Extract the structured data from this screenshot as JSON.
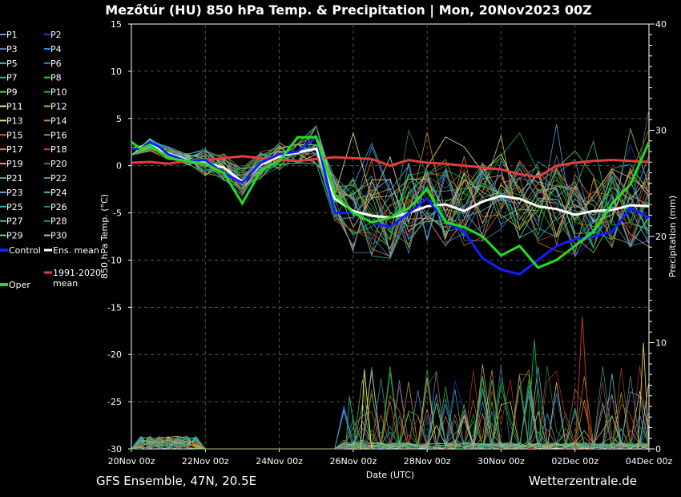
{
  "chart_data": {
    "type": "line",
    "title": "Mezőtúr  (HU)  850 hPa Temp. & Precipitation | Mon, 20Nov2023 00Z",
    "xlabel": "Date (UTC)",
    "ylabel": "850 hPa Temp. (°C)",
    "y2label": "Precipitation (mm)",
    "xlim": [
      0,
      14
    ],
    "ylim": [
      -30,
      15
    ],
    "y2lim": [
      0,
      40
    ],
    "x_tick_labels": [
      "20Nov 00z",
      "22Nov 00z",
      "24Nov 00z",
      "26Nov 00z",
      "28Nov 00z",
      "30Nov 00z",
      "02Dec 00z",
      "04Dec 00z"
    ],
    "x_tick_days": [
      0,
      2,
      4,
      6,
      8,
      10,
      12,
      14
    ],
    "y_ticks": [
      15,
      10,
      5,
      0,
      -5,
      -10,
      -15,
      -20,
      -25,
      -30
    ],
    "y2_ticks": [
      40,
      30,
      20,
      10,
      0
    ],
    "grid": true,
    "legend": {
      "members": [
        {
          "label": "P1",
          "color": "#6495ed"
        },
        {
          "label": "P2",
          "color": "#1e3cd2"
        },
        {
          "label": "P3",
          "color": "#4682b4"
        },
        {
          "label": "P4",
          "color": "#1e90ff"
        },
        {
          "label": "P5",
          "color": "#40c0c0"
        },
        {
          "label": "P6",
          "color": "#2e9f6a"
        },
        {
          "label": "P7",
          "color": "#3cb371"
        },
        {
          "label": "P8",
          "color": "#32cd32"
        },
        {
          "label": "P9",
          "color": "#66cc66"
        },
        {
          "label": "P10",
          "color": "#22bb22"
        },
        {
          "label": "P11",
          "color": "#f0e68c"
        },
        {
          "label": "P12",
          "color": "#daa520"
        },
        {
          "label": "P13",
          "color": "#eedd82"
        },
        {
          "label": "P14",
          "color": "#cd853f"
        },
        {
          "label": "P15",
          "color": "#d2691e"
        },
        {
          "label": "P16",
          "color": "#b8860b"
        },
        {
          "label": "P17",
          "color": "#e07050"
        },
        {
          "label": "P18",
          "color": "#c0392b"
        },
        {
          "label": "P19",
          "color": "#e9967a"
        },
        {
          "label": "P20",
          "color": "#a0522d"
        },
        {
          "label": "P21",
          "color": "#5f9ea0"
        },
        {
          "label": "P22",
          "color": "#3399cc"
        },
        {
          "label": "P23",
          "color": "#66aadd"
        },
        {
          "label": "P24",
          "color": "#48b0c8"
        },
        {
          "label": "P25",
          "color": "#20b2aa"
        },
        {
          "label": "P26",
          "color": "#2e8b57"
        },
        {
          "label": "P27",
          "color": "#50c878"
        },
        {
          "label": "P28",
          "color": "#00b050"
        },
        {
          "label": "P29",
          "color": "#7ccd7c"
        },
        {
          "label": "P30",
          "color": "#cdbe70"
        }
      ],
      "control": {
        "label": "Control",
        "color": "#1020ff"
      },
      "ens_mean": {
        "label": "Ens. mean",
        "color": "#ffffff"
      },
      "oper": {
        "label": "Oper",
        "color": "#1ee01e"
      },
      "climate": {
        "label_line1": "1991-2020",
        "label_line2": "mean",
        "color": "#e83c3c"
      }
    },
    "series": [
      {
        "name": "Oper",
        "color": "#1ee01e",
        "x": [
          0,
          0.25,
          0.5,
          0.75,
          1,
          1.5,
          2,
          2.5,
          3,
          3.5,
          4,
          4.5,
          5,
          5.5,
          6,
          6.5,
          7,
          7.5,
          8,
          8.5,
          9,
          9.5,
          10,
          10.5,
          11,
          11.5,
          12,
          12.5,
          13,
          13.5,
          14
        ],
        "values": [
          2.5,
          1.8,
          2.2,
          1.5,
          0.8,
          0.5,
          0.2,
          -0.8,
          -4,
          -0.5,
          0.5,
          3,
          3,
          -3,
          -5,
          -6,
          -5.5,
          -4.5,
          -2.5,
          -6,
          -6.5,
          -7.5,
          -9.5,
          -8.5,
          -10.8,
          -10,
          -8.5,
          -7,
          -4,
          -2,
          2.5
        ]
      },
      {
        "name": "Control",
        "color": "#1020ff",
        "x": [
          0,
          0.25,
          0.5,
          0.75,
          1,
          1.5,
          2,
          2.5,
          3,
          3.5,
          4,
          4.5,
          5,
          5.5,
          6,
          6.5,
          7,
          7.5,
          8,
          8.5,
          9,
          9.5,
          10,
          10.5,
          11,
          11.5,
          12,
          12.5,
          13,
          13.5,
          14
        ],
        "values": [
          1.8,
          1.8,
          2.5,
          2,
          1.2,
          0.5,
          0.6,
          -0.8,
          -1.8,
          0.3,
          1.2,
          1.5,
          3,
          -5,
          -5,
          -6,
          -6.5,
          -5,
          -3.5,
          -6,
          -7,
          -9.8,
          -11,
          -11.5,
          -10,
          -8.5,
          -7.8,
          -7.5,
          -7,
          -4.5,
          -5.5
        ]
      },
      {
        "name": "Ens. mean",
        "color": "#ffffff",
        "x": [
          0,
          0.5,
          1,
          1.5,
          2,
          2.5,
          3,
          3.5,
          4,
          4.5,
          5,
          5.5,
          6,
          6.5,
          7,
          7.5,
          8,
          8.5,
          9,
          9.5,
          10,
          10.5,
          11,
          11.5,
          12,
          12.5,
          13,
          13.5,
          14
        ],
        "values": [
          1.8,
          2.2,
          1.3,
          0.6,
          0.3,
          -0.2,
          -1.7,
          0.1,
          1,
          1.4,
          1.8,
          -3.5,
          -4.8,
          -5.3,
          -5.5,
          -5,
          -4.3,
          -4.1,
          -4.8,
          -3.8,
          -3.2,
          -3.5,
          -4.3,
          -4.6,
          -5.2,
          -4.8,
          -4.7,
          -4.2,
          -4.3
        ]
      },
      {
        "name": "1991-2020 mean",
        "color": "#e83c3c",
        "x": [
          0,
          0.5,
          1,
          1.5,
          2,
          2.5,
          3,
          3.5,
          4,
          4.5,
          5,
          5.5,
          6,
          6.5,
          7,
          7.5,
          8,
          8.5,
          9,
          9.5,
          10,
          10.5,
          11,
          11.5,
          12,
          12.5,
          13,
          13.5,
          14
        ],
        "values": [
          0.3,
          0.4,
          0.2,
          0.5,
          0.6,
          0.8,
          1,
          0.8,
          0.6,
          0.5,
          0.7,
          0.9,
          0.8,
          0.7,
          0,
          0.6,
          0.3,
          0.2,
          0,
          -0.2,
          -0.4,
          -0.9,
          -1.2,
          0,
          0.3,
          0.5,
          0.6,
          0.5,
          0.4
        ]
      }
    ],
    "precipitation": [
      {
        "name": "P11 precip",
        "color": "#eedd30",
        "x": [
          6.2,
          6.3,
          6.5
        ],
        "values": [
          0,
          7.5,
          0
        ]
      },
      {
        "name": "P6 precip",
        "color": "#2e9f6a",
        "x": [
          5.8,
          5.9,
          6.1
        ],
        "values": [
          0,
          5,
          0
        ]
      },
      {
        "name": "P18 precip",
        "color": "#c0392b",
        "x": [
          12.0,
          12.2,
          12.4
        ],
        "values": [
          0,
          12.5,
          0
        ]
      },
      {
        "name": "P28 precip",
        "color": "#00b050",
        "x": [
          10.7,
          10.9,
          11.1
        ],
        "values": [
          0,
          10.3,
          0
        ]
      },
      {
        "name": "P30 precip",
        "color": "#cdbe70",
        "x": [
          13.7,
          13.85,
          14
        ],
        "values": [
          0,
          10,
          0
        ]
      }
    ],
    "footer_left": "GFS Ensemble, 47N, 20.5E",
    "footer_right": "Wetterzentrale.de"
  }
}
